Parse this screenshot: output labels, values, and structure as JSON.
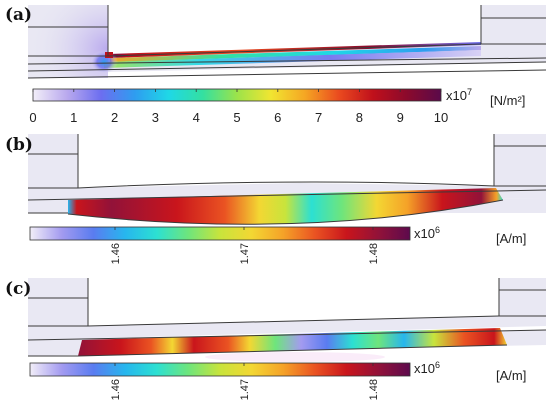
{
  "panels": [
    {
      "label": "(a)",
      "colorbar": {
        "multiplier_base": "x10",
        "multiplier_exp": "7",
        "unit": "[N/m²]",
        "ticks": [
          "0",
          "1",
          "2",
          "3",
          "4",
          "5",
          "6",
          "7",
          "8",
          "9",
          "10"
        ],
        "gradient": [
          "#f2eef8",
          "#b9a9ee",
          "#6c6ef0",
          "#2e9df0",
          "#1fd8e6",
          "#34e0a0",
          "#9ce34a",
          "#f1e531",
          "#f5a623",
          "#ea4a1f",
          "#c0101b",
          "#8b0a2c",
          "#5a0a4a"
        ]
      }
    },
    {
      "label": "(b)",
      "colorbar": {
        "multiplier_base": "x10",
        "multiplier_exp": "6",
        "unit": "[A/m]",
        "ticks": [
          "1.46",
          "1.47",
          "1.48"
        ],
        "gradient": [
          "#f2eef8",
          "#a39bf0",
          "#5a7cf0",
          "#27b6ee",
          "#2ce0d2",
          "#6ee57c",
          "#c8e43c",
          "#f3d733",
          "#f5a228",
          "#ea5322",
          "#c9151c",
          "#921239",
          "#5d0a4d"
        ]
      }
    },
    {
      "label": "(c)",
      "colorbar": {
        "multiplier_base": "x10",
        "multiplier_exp": "6",
        "unit": "[A/m]",
        "ticks": [
          "1.46",
          "1.47",
          "1.48"
        ],
        "gradient": [
          "#f2eef8",
          "#a39bf0",
          "#5a7cf0",
          "#27b6ee",
          "#2ce0d2",
          "#6ee57c",
          "#c8e43c",
          "#f3d733",
          "#f5a228",
          "#ea5322",
          "#c9151c",
          "#921239",
          "#5d0a4d"
        ]
      }
    }
  ],
  "colors": {
    "background_region": "#e9e8f3",
    "structure_line": "#3a3a3a"
  }
}
